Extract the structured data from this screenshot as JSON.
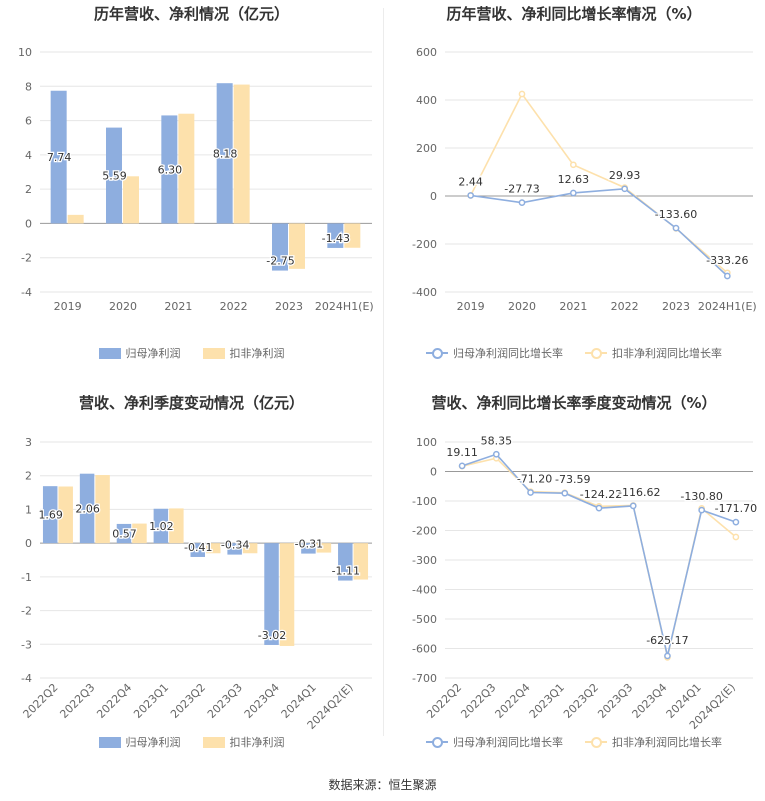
{
  "source": "数据来源：恒生聚源",
  "colors": {
    "parent": "#8eaedf",
    "deducted": "#fde1ac"
  },
  "chart_data": [
    {
      "id": "annual_profit",
      "type": "bar",
      "title": "历年营收、净利情况（亿元）",
      "categories": [
        "2019",
        "2020",
        "2021",
        "2022",
        "2023",
        "2024H1(E)"
      ],
      "series": [
        {
          "name": "归母净利润",
          "values": [
            7.74,
            5.59,
            6.3,
            8.18,
            -2.75,
            -1.43
          ],
          "labels": [
            "7.74",
            "5.59",
            "6.30",
            "8.18",
            "-2.75",
            "-1.43"
          ]
        },
        {
          "name": "扣非净利润",
          "values": [
            0.5,
            2.75,
            6.4,
            8.1,
            -2.65,
            -1.42
          ]
        }
      ],
      "ylim": [
        -4,
        10
      ],
      "yticks": [
        "-4",
        "-2",
        "0",
        "2",
        "4",
        "6",
        "8",
        "10"
      ],
      "legend": [
        "归母净利润",
        "扣非净利润"
      ]
    },
    {
      "id": "annual_growth",
      "type": "line",
      "title": "历年营收、净利同比增长率情况（%）",
      "categories": [
        "2019",
        "2020",
        "2021",
        "2022",
        "2023",
        "2024H1(E)"
      ],
      "series": [
        {
          "name": "归母净利润同比增长率",
          "values": [
            2.44,
            -27.73,
            12.63,
            29.93,
            -133.6,
            -333.26
          ],
          "labels": [
            "2.44",
            "-27.73",
            "12.63",
            "29.93",
            "-133.60",
            "-333.26"
          ]
        },
        {
          "name": "扣非净利润同比增长率",
          "values": [
            2,
            425,
            130,
            35,
            -135,
            -320
          ]
        }
      ],
      "ylim": [
        -400,
        600
      ],
      "yticks": [
        "-400",
        "-200",
        "0",
        "200",
        "400",
        "600"
      ],
      "legend": [
        "归母净利润同比增长率",
        "扣非净利润同比增长率"
      ]
    },
    {
      "id": "quarter_profit",
      "type": "bar",
      "title": "营收、净利季度变动情况（亿元）",
      "categories": [
        "2022Q2",
        "2022Q3",
        "2022Q4",
        "2023Q1",
        "2023Q2",
        "2023Q3",
        "2023Q4",
        "2024Q1",
        "2024Q2(E)"
      ],
      "series": [
        {
          "name": "归母净利润",
          "values": [
            1.69,
            2.06,
            0.57,
            1.02,
            -0.41,
            -0.34,
            -3.02,
            -0.31,
            -1.11
          ],
          "labels": [
            "1.69",
            "2.06",
            "0.57",
            "1.02",
            "-0.41",
            "-0.34",
            "-3.02",
            "-0.31",
            "-1.11"
          ]
        },
        {
          "name": "扣非净利润",
          "values": [
            1.68,
            2.02,
            0.58,
            1.03,
            -0.3,
            -0.3,
            -3.05,
            -0.28,
            -1.08
          ]
        }
      ],
      "ylim": [
        -4,
        3
      ],
      "yticks": [
        "-4",
        "-3",
        "-2",
        "-1",
        "0",
        "1",
        "2",
        "3"
      ],
      "legend": [
        "归母净利润",
        "扣非净利润"
      ]
    },
    {
      "id": "quarter_growth",
      "type": "line",
      "title": "营收、净利同比增长率季度变动情况（%）",
      "categories": [
        "2022Q2",
        "2022Q3",
        "2022Q4",
        "2023Q1",
        "2023Q2",
        "2023Q3",
        "2023Q4",
        "2024Q1",
        "2024Q2(E)"
      ],
      "series": [
        {
          "name": "归母净利润同比增长率",
          "values": [
            19.11,
            58.35,
            -71.2,
            -73.59,
            -124.22,
            -116.62,
            -625.17,
            -130.8,
            -171.7
          ],
          "labels": [
            "19.11",
            "58.35",
            "-71.20",
            "-73.59",
            "-124.22",
            "-116.62",
            "-625.17",
            "-130.80",
            "-171.70"
          ]
        },
        {
          "name": "扣非净利润同比增长率",
          "values": [
            18,
            45,
            -68,
            -72,
            -118,
            -115,
            -630,
            -125,
            -222
          ]
        }
      ],
      "ylim": [
        -700,
        100
      ],
      "yticks": [
        "-700",
        "-600",
        "-500",
        "-400",
        "-300",
        "-200",
        "-100",
        "0",
        "100"
      ],
      "legend": [
        "归母净利润同比增长率",
        "扣非净利润同比增长率"
      ]
    }
  ]
}
